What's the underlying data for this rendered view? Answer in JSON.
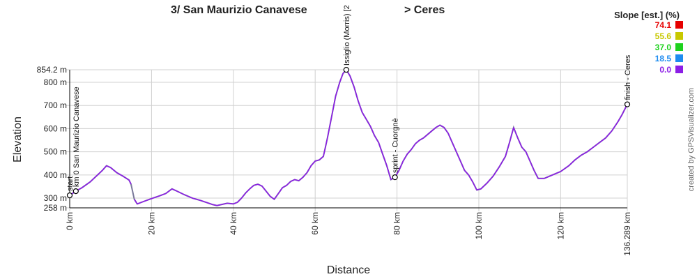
{
  "chart_data": {
    "type": "line",
    "title_left": "3/ San Maurizio Canavese",
    "title_right": "> Ceres",
    "xlabel": "Distance",
    "ylabel": "Elevation",
    "xlim": [
      0,
      136.289
    ],
    "ylim": [
      258,
      854.2
    ],
    "x_ticks": [
      {
        "v": 0,
        "label": "0 km"
      },
      {
        "v": 20,
        "label": "20 km"
      },
      {
        "v": 40,
        "label": "40 km"
      },
      {
        "v": 60,
        "label": "60 km"
      },
      {
        "v": 80,
        "label": "80 km"
      },
      {
        "v": 100,
        "label": "100 km"
      },
      {
        "v": 120,
        "label": "120 km"
      },
      {
        "v": 136.289,
        "label": "136.289 km"
      }
    ],
    "y_ticks": [
      {
        "v": 258,
        "label": "258 m"
      },
      {
        "v": 300,
        "label": "300 m"
      },
      {
        "v": 400,
        "label": "400 m"
      },
      {
        "v": 500,
        "label": "500 m"
      },
      {
        "v": 600,
        "label": "600 m"
      },
      {
        "v": 700,
        "label": "700 m"
      },
      {
        "v": 800,
        "label": "800 m"
      },
      {
        "v": 854.2,
        "label": "854.2 m"
      }
    ],
    "grid": true,
    "legend_position": "top-right",
    "legend": {
      "title": "Slope [est.] (%)",
      "items": [
        {
          "label": "74.1",
          "color": "#e60000"
        },
        {
          "label": "55.6",
          "color": "#c8c800"
        },
        {
          "label": "37.0",
          "color": "#1ed21e"
        },
        {
          "label": "18.5",
          "color": "#1e8cf0"
        },
        {
          "label": "0.0",
          "color": "#8c1ee6"
        }
      ]
    },
    "series": [
      {
        "line_color": "#7a7a9a",
        "points": [
          [
            0,
            312
          ],
          [
            1.5,
            330
          ],
          [
            3,
            345
          ],
          [
            5,
            370
          ],
          [
            6.5,
            395
          ],
          [
            8,
            420
          ],
          [
            9,
            440
          ],
          [
            10,
            432
          ],
          [
            11.5,
            410
          ],
          [
            13,
            395
          ],
          [
            14.5,
            378
          ],
          [
            15,
            360
          ],
          [
            15.8,
            295
          ],
          [
            16.5,
            275
          ],
          [
            18,
            285
          ],
          [
            20,
            298
          ],
          [
            22,
            310
          ],
          [
            23.5,
            320
          ],
          [
            25,
            340
          ],
          [
            26,
            332
          ],
          [
            28,
            315
          ],
          [
            30,
            300
          ],
          [
            32,
            290
          ],
          [
            34,
            278
          ],
          [
            35,
            272
          ],
          [
            36,
            268
          ],
          [
            37,
            272
          ],
          [
            38.5,
            278
          ],
          [
            40,
            275
          ],
          [
            41,
            282
          ],
          [
            42,
            300
          ],
          [
            43,
            322
          ],
          [
            44,
            340
          ],
          [
            45,
            355
          ],
          [
            46,
            360
          ],
          [
            47,
            352
          ],
          [
            48,
            330
          ],
          [
            49,
            308
          ],
          [
            50,
            295
          ],
          [
            51,
            320
          ],
          [
            52,
            345
          ],
          [
            53,
            355
          ],
          [
            54,
            372
          ],
          [
            55,
            380
          ],
          [
            56,
            375
          ],
          [
            57,
            390
          ],
          [
            58,
            410
          ],
          [
            59,
            440
          ],
          [
            60,
            460
          ],
          [
            61,
            465
          ],
          [
            62,
            480
          ],
          [
            62.5,
            520
          ],
          [
            63,
            560
          ],
          [
            64,
            650
          ],
          [
            65,
            740
          ],
          [
            66,
            800
          ],
          [
            66.8,
            838
          ],
          [
            67.6,
            854
          ],
          [
            68.5,
            828
          ],
          [
            69.5,
            780
          ],
          [
            70.5,
            720
          ],
          [
            71.5,
            670
          ],
          [
            72.5,
            640
          ],
          [
            73.5,
            610
          ],
          [
            74.5,
            570
          ],
          [
            75.5,
            540
          ],
          [
            76.5,
            490
          ],
          [
            77.5,
            440
          ],
          [
            78.5,
            380
          ],
          [
            79.5,
            390
          ],
          [
            80.5,
            420
          ],
          [
            81.5,
            460
          ],
          [
            82.5,
            490
          ],
          [
            83.5,
            510
          ],
          [
            84.5,
            535
          ],
          [
            85.5,
            550
          ],
          [
            86.5,
            560
          ],
          [
            87.5,
            575
          ],
          [
            88.5,
            590
          ],
          [
            89.5,
            605
          ],
          [
            90.5,
            615
          ],
          [
            91.5,
            605
          ],
          [
            92.5,
            580
          ],
          [
            93.5,
            540
          ],
          [
            94.5,
            500
          ],
          [
            95.5,
            460
          ],
          [
            96.5,
            420
          ],
          [
            97.5,
            400
          ],
          [
            98.5,
            370
          ],
          [
            99.5,
            335
          ],
          [
            100.5,
            340
          ],
          [
            102,
            365
          ],
          [
            103.5,
            395
          ],
          [
            105,
            435
          ],
          [
            106.5,
            480
          ],
          [
            107.5,
            540
          ],
          [
            108.5,
            605
          ],
          [
            109.5,
            560
          ],
          [
            110.5,
            520
          ],
          [
            111.5,
            500
          ],
          [
            112.5,
            460
          ],
          [
            113.5,
            420
          ],
          [
            114.5,
            385
          ],
          [
            116,
            385
          ],
          [
            118,
            400
          ],
          [
            120,
            415
          ],
          [
            122,
            440
          ],
          [
            123.5,
            465
          ],
          [
            125,
            485
          ],
          [
            126.5,
            500
          ],
          [
            128,
            520
          ],
          [
            129.5,
            540
          ],
          [
            131,
            560
          ],
          [
            132.5,
            590
          ],
          [
            134,
            630
          ],
          [
            135,
            660
          ],
          [
            136.289,
            705
          ]
        ]
      }
    ],
    "waypoints": [
      {
        "x": 0,
        "y": 312,
        "label": "start"
      },
      {
        "x": 1.5,
        "y": 330,
        "label": "km 0 San Maurizio Canavese"
      },
      {
        "x": 67.6,
        "y": 854,
        "label": "Issiglio (Morris) [2"
      },
      {
        "x": 79.5,
        "y": 390,
        "label": "sprint - Cuorgnè"
      },
      {
        "x": 136.289,
        "y": 705,
        "label": "finish - Ceres"
      }
    ],
    "credit": "created by GPSVisualizer.com"
  }
}
